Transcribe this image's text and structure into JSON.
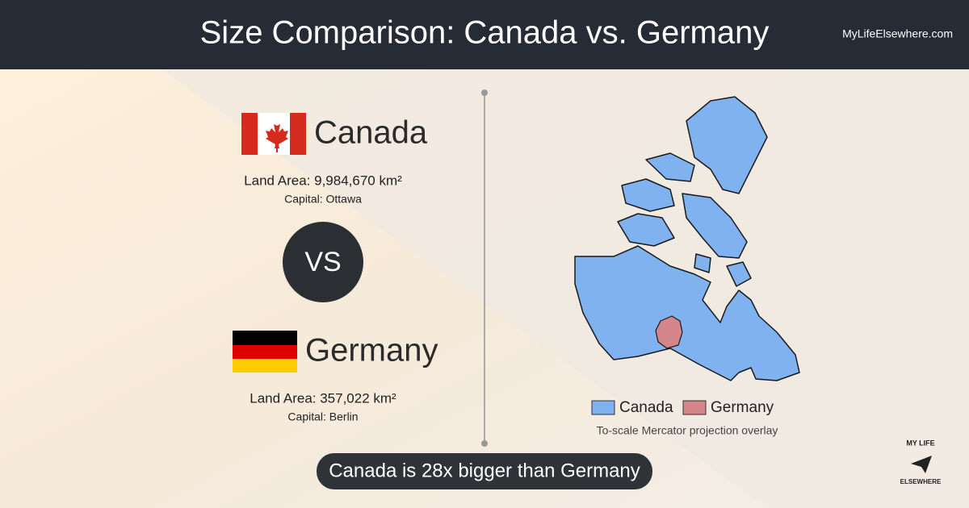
{
  "header": {
    "title": "Size Comparison: Canada vs. Germany",
    "site": "MyLifeElsewhere.com"
  },
  "countries": [
    {
      "name": "Canada",
      "land_area": "Land Area: 9,984,670 km²",
      "capital": "Capital: Ottawa"
    },
    {
      "name": "Germany",
      "land_area": "Land Area: 357,022 km²",
      "capital": "Capital: Berlin"
    }
  ],
  "vs": "VS",
  "legend": [
    "Canada",
    "Germany"
  ],
  "note": "To-scale Mercator projection overlay",
  "summary": "Canada is 28x bigger than Germany",
  "logo": {
    "top": "MY LIFE",
    "bottom": "ELSEWHERE"
  }
}
